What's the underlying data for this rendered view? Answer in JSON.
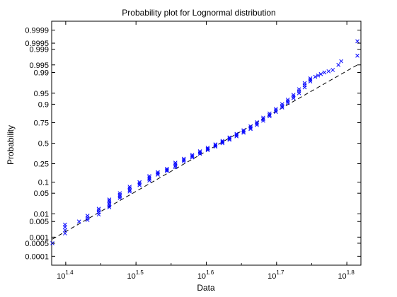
{
  "chart_data": {
    "type": "scatter",
    "title": "Probability plot for Lognormal distribution",
    "xlabel": "Data",
    "ylabel": "Probability",
    "x_scale": "log10",
    "y_scale": "normal-probability",
    "xlim_log10": [
      1.38,
      1.82
    ],
    "ylim_probability": [
      3e-05,
      0.99997
    ],
    "x_ticks": [
      {
        "base": "10",
        "exp": "1.4",
        "log10": 1.4
      },
      {
        "base": "10",
        "exp": "1.5",
        "log10": 1.5
      },
      {
        "base": "10",
        "exp": "1.6",
        "log10": 1.6
      },
      {
        "base": "10",
        "exp": "1.7",
        "log10": 1.7
      },
      {
        "base": "10",
        "exp": "1.8",
        "log10": 1.8
      }
    ],
    "y_ticks": [
      {
        "label": "0.0001",
        "p": 0.0001
      },
      {
        "label": "0.0005",
        "p": 0.0005
      },
      {
        "label": "0.001",
        "p": 0.001
      },
      {
        "label": "0.005",
        "p": 0.005
      },
      {
        "label": "0.01",
        "p": 0.01
      },
      {
        "label": "0.05",
        "p": 0.05
      },
      {
        "label": "0.1",
        "p": 0.1
      },
      {
        "label": "0.25",
        "p": 0.25
      },
      {
        "label": "0.5",
        "p": 0.5
      },
      {
        "label": "0.75",
        "p": 0.75
      },
      {
        "label": "0.9",
        "p": 0.9
      },
      {
        "label": "0.95",
        "p": 0.95
      },
      {
        "label": "0.99",
        "p": 0.99
      },
      {
        "label": "0.995",
        "p": 0.995
      },
      {
        "label": "0.999",
        "p": 0.999
      },
      {
        "label": "0.9995",
        "p": 0.9995
      },
      {
        "label": "0.9999",
        "p": 0.9999
      }
    ],
    "series": [
      {
        "marker": "x",
        "color": "#0000ff",
        "points": [
          [
            1.381,
            0.0005
          ],
          [
            1.399,
            0.0015
          ],
          [
            1.399,
            0.0021
          ],
          [
            1.399,
            0.0029
          ],
          [
            1.399,
            0.0037
          ],
          [
            1.419,
            0.005
          ],
          [
            1.431,
            0.0058
          ],
          [
            1.431,
            0.007
          ],
          [
            1.431,
            0.0085
          ],
          [
            1.447,
            0.0095
          ],
          [
            1.447,
            0.0115
          ],
          [
            1.447,
            0.0135
          ],
          [
            1.447,
            0.0155
          ],
          [
            1.462,
            0.0175
          ],
          [
            1.462,
            0.02
          ],
          [
            1.462,
            0.0225
          ],
          [
            1.462,
            0.0255
          ],
          [
            1.462,
            0.0285
          ],
          [
            1.462,
            0.032
          ],
          [
            1.477,
            0.036
          ],
          [
            1.477,
            0.04
          ],
          [
            1.477,
            0.045
          ],
          [
            1.477,
            0.05
          ],
          [
            1.491,
            0.056
          ],
          [
            1.491,
            0.062
          ],
          [
            1.491,
            0.069
          ],
          [
            1.491,
            0.076
          ],
          [
            1.505,
            0.084
          ],
          [
            1.505,
            0.092
          ],
          [
            1.505,
            0.1
          ],
          [
            1.519,
            0.11
          ],
          [
            1.519,
            0.12
          ],
          [
            1.519,
            0.13
          ],
          [
            1.519,
            0.14
          ],
          [
            1.531,
            0.15
          ],
          [
            1.531,
            0.16
          ],
          [
            1.531,
            0.17
          ],
          [
            1.544,
            0.18
          ],
          [
            1.544,
            0.19
          ],
          [
            1.544,
            0.2
          ],
          [
            1.556,
            0.215
          ],
          [
            1.556,
            0.23
          ],
          [
            1.556,
            0.245
          ],
          [
            1.556,
            0.26
          ],
          [
            1.568,
            0.275
          ],
          [
            1.568,
            0.29
          ],
          [
            1.568,
            0.305
          ],
          [
            1.58,
            0.32
          ],
          [
            1.58,
            0.335
          ],
          [
            1.58,
            0.35
          ],
          [
            1.591,
            0.365
          ],
          [
            1.591,
            0.38
          ],
          [
            1.591,
            0.395
          ],
          [
            1.602,
            0.41
          ],
          [
            1.602,
            0.425
          ],
          [
            1.602,
            0.44
          ],
          [
            1.613,
            0.455
          ],
          [
            1.613,
            0.47
          ],
          [
            1.613,
            0.485
          ],
          [
            1.623,
            0.5
          ],
          [
            1.623,
            0.515
          ],
          [
            1.623,
            0.53
          ],
          [
            1.633,
            0.545
          ],
          [
            1.633,
            0.56
          ],
          [
            1.633,
            0.575
          ],
          [
            1.643,
            0.59
          ],
          [
            1.643,
            0.605
          ],
          [
            1.643,
            0.62
          ],
          [
            1.653,
            0.635
          ],
          [
            1.653,
            0.65
          ],
          [
            1.653,
            0.665
          ],
          [
            1.663,
            0.68
          ],
          [
            1.663,
            0.695
          ],
          [
            1.663,
            0.71
          ],
          [
            1.672,
            0.725
          ],
          [
            1.672,
            0.74
          ],
          [
            1.672,
            0.755
          ],
          [
            1.681,
            0.77
          ],
          [
            1.681,
            0.785
          ],
          [
            1.681,
            0.8
          ],
          [
            1.69,
            0.812
          ],
          [
            1.69,
            0.824
          ],
          [
            1.69,
            0.836
          ],
          [
            1.699,
            0.848
          ],
          [
            1.699,
            0.86
          ],
          [
            1.699,
            0.87
          ],
          [
            1.708,
            0.88
          ],
          [
            1.708,
            0.89
          ],
          [
            1.708,
            0.9
          ],
          [
            1.716,
            0.908
          ],
          [
            1.716,
            0.916
          ],
          [
            1.716,
            0.924
          ],
          [
            1.724,
            0.931
          ],
          [
            1.724,
            0.938
          ],
          [
            1.724,
            0.944
          ],
          [
            1.732,
            0.95
          ],
          [
            1.732,
            0.956
          ],
          [
            1.732,
            0.962
          ],
          [
            1.74,
            0.967
          ],
          [
            1.74,
            0.972
          ],
          [
            1.74,
            0.976
          ],
          [
            1.748,
            0.979
          ],
          [
            1.748,
            0.9815
          ],
          [
            1.748,
            0.9835
          ],
          [
            1.755,
            0.9855
          ],
          [
            1.759,
            0.987
          ],
          [
            1.763,
            0.9885
          ],
          [
            1.768,
            0.99
          ],
          [
            1.774,
            0.991
          ],
          [
            1.78,
            0.992
          ],
          [
            1.788,
            0.995
          ],
          [
            1.792,
            0.9965
          ],
          [
            1.815,
            0.998
          ],
          [
            1.815,
            0.9996
          ]
        ]
      }
    ],
    "reference_line": {
      "style": "dashed",
      "color": "#000000",
      "points": [
        [
          1.381,
          0.0008
        ],
        [
          1.815,
          0.995
        ]
      ]
    }
  }
}
